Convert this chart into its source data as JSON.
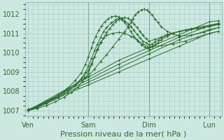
{
  "background_color": "#cce8e0",
  "plot_bg_color": "#cce8e0",
  "line_color": "#2d6e2d",
  "marker": "+",
  "markersize": 3,
  "linewidth": 0.7,
  "xlabel": "Pression niveau de la mer( hPa )",
  "xlabel_fontsize": 8,
  "yticks": [
    1007,
    1008,
    1009,
    1010,
    1011,
    1012
  ],
  "xtick_labels": [
    "Ven",
    "Sam",
    "Dim",
    "Lun"
  ],
  "xtick_positions": [
    0,
    1,
    2,
    3
  ],
  "ylim": [
    1006.7,
    1012.6
  ],
  "xlim": [
    -0.05,
    3.2
  ],
  "grid_color": "#a8cfc8",
  "vline_color": "#7ab0a8",
  "series": [
    {
      "x": [
        0.0,
        0.5,
        1.0,
        1.5,
        2.0,
        2.5,
        3.0,
        3.15
      ],
      "y": [
        1007.0,
        1007.67,
        1008.33,
        1009.0,
        1009.67,
        1010.33,
        1011.0,
        1011.1
      ]
    },
    {
      "x": [
        0.0,
        0.5,
        1.0,
        1.5,
        2.0,
        2.5,
        3.0,
        3.15
      ],
      "y": [
        1007.0,
        1007.73,
        1008.47,
        1009.2,
        1009.93,
        1010.67,
        1011.2,
        1011.3
      ]
    },
    {
      "x": [
        0.0,
        0.5,
        1.0,
        1.5,
        2.0,
        2.5,
        3.0,
        3.15
      ],
      "y": [
        1007.0,
        1007.8,
        1008.6,
        1009.4,
        1010.1,
        1010.8,
        1011.4,
        1011.5
      ]
    },
    {
      "x": [
        0.0,
        0.5,
        1.0,
        1.5,
        2.0,
        2.5,
        3.0,
        3.15
      ],
      "y": [
        1007.0,
        1007.87,
        1008.73,
        1009.6,
        1010.27,
        1010.93,
        1011.6,
        1011.65
      ]
    },
    {
      "x": [
        0.0,
        0.15,
        0.3,
        0.45,
        0.6,
        0.72,
        0.82,
        0.9,
        0.95,
        1.0,
        1.05,
        1.1,
        1.15,
        1.2,
        1.3,
        1.4,
        1.5,
        1.6,
        1.7,
        1.8,
        1.9,
        2.0,
        2.2,
        2.4,
        2.6,
        2.8,
        3.0,
        3.15
      ],
      "y": [
        1007.0,
        1007.1,
        1007.25,
        1007.45,
        1007.7,
        1007.95,
        1008.2,
        1008.5,
        1008.7,
        1008.95,
        1009.4,
        1009.8,
        1010.2,
        1010.55,
        1010.9,
        1011.0,
        1011.05,
        1011.0,
        1010.85,
        1010.65,
        1010.45,
        1010.3,
        1010.35,
        1010.45,
        1010.6,
        1010.8,
        1011.0,
        1011.1
      ]
    },
    {
      "x": [
        0.0,
        0.15,
        0.3,
        0.5,
        0.65,
        0.78,
        0.88,
        0.95,
        1.0,
        1.05,
        1.1,
        1.15,
        1.2,
        1.25,
        1.3,
        1.38,
        1.45,
        1.5,
        1.55,
        1.6,
        1.65,
        1.7,
        1.75,
        1.8,
        1.85,
        1.9,
        1.95,
        2.0,
        2.05,
        2.1,
        2.15,
        2.2,
        2.3,
        2.4,
        2.5,
        2.6,
        2.7,
        2.8,
        2.9,
        3.0,
        3.15
      ],
      "y": [
        1007.0,
        1007.15,
        1007.35,
        1007.65,
        1007.95,
        1008.3,
        1008.65,
        1009.0,
        1009.3,
        1009.7,
        1010.1,
        1010.45,
        1010.8,
        1011.1,
        1011.3,
        1011.55,
        1011.7,
        1011.8,
        1011.75,
        1011.65,
        1011.5,
        1011.35,
        1011.15,
        1010.95,
        1010.75,
        1010.6,
        1010.5,
        1010.4,
        1010.45,
        1010.55,
        1010.65,
        1010.75,
        1010.9,
        1011.0,
        1011.1,
        1011.15,
        1011.2,
        1011.25,
        1011.3,
        1011.35,
        1011.45
      ]
    },
    {
      "x": [
        0.0,
        0.15,
        0.3,
        0.5,
        0.65,
        0.78,
        0.88,
        0.95,
        1.0,
        1.05,
        1.08,
        1.12,
        1.17,
        1.22,
        1.27,
        1.32,
        1.38,
        1.45,
        1.5,
        1.55,
        1.6,
        1.65,
        1.7,
        1.75,
        1.82,
        1.88,
        1.93,
        1.97,
        2.0,
        2.05,
        2.1,
        2.15,
        2.2,
        2.3,
        2.4,
        2.5,
        2.6,
        2.7,
        2.8,
        2.9,
        3.0,
        3.15
      ],
      "y": [
        1007.05,
        1007.2,
        1007.45,
        1007.8,
        1008.15,
        1008.55,
        1008.95,
        1009.4,
        1009.8,
        1010.25,
        1010.55,
        1010.85,
        1011.15,
        1011.4,
        1011.6,
        1011.75,
        1011.85,
        1011.9,
        1011.85,
        1011.72,
        1011.55,
        1011.35,
        1011.1,
        1010.85,
        1010.6,
        1010.4,
        1010.3,
        1010.25,
        1010.2,
        1010.3,
        1010.4,
        1010.52,
        1010.65,
        1010.85,
        1011.0,
        1011.1,
        1011.18,
        1011.25,
        1011.3,
        1011.36,
        1011.42,
        1011.52
      ]
    },
    {
      "x": [
        0.0,
        0.2,
        0.4,
        0.6,
        0.8,
        1.0,
        1.1,
        1.2,
        1.3,
        1.4,
        1.5,
        1.6,
        1.65,
        1.7,
        1.73,
        1.77,
        1.82,
        1.87,
        1.92,
        1.97,
        2.0,
        2.05,
        2.1,
        2.15,
        2.2,
        2.3,
        2.5,
        2.7,
        2.9,
        3.0,
        3.15
      ],
      "y": [
        1007.05,
        1007.3,
        1007.6,
        1008.0,
        1008.4,
        1008.8,
        1009.15,
        1009.55,
        1009.9,
        1010.3,
        1010.7,
        1011.1,
        1011.3,
        1011.55,
        1011.75,
        1011.95,
        1012.1,
        1012.2,
        1012.25,
        1012.2,
        1012.1,
        1011.95,
        1011.75,
        1011.55,
        1011.35,
        1011.1,
        1010.85,
        1010.9,
        1011.05,
        1011.15,
        1011.3
      ]
    },
    {
      "x": [
        0.0,
        0.15,
        0.3,
        0.5,
        0.65,
        0.8,
        0.92,
        1.0,
        1.05,
        1.1,
        1.15,
        1.2,
        1.25,
        1.3,
        1.35,
        1.4,
        1.45,
        1.5,
        1.55,
        1.6,
        1.65,
        1.7,
        1.75,
        1.8,
        1.85,
        1.9,
        1.95,
        2.0,
        2.1,
        2.2,
        2.3,
        2.5,
        2.7,
        2.9,
        3.0,
        3.15
      ],
      "y": [
        1007.0,
        1007.18,
        1007.4,
        1007.72,
        1008.05,
        1008.4,
        1008.75,
        1009.1,
        1009.45,
        1009.8,
        1010.15,
        1010.5,
        1010.78,
        1011.05,
        1011.25,
        1011.45,
        1011.6,
        1011.72,
        1011.8,
        1011.82,
        1011.78,
        1011.68,
        1011.5,
        1011.3,
        1011.1,
        1010.9,
        1010.72,
        1010.6,
        1010.68,
        1010.8,
        1010.95,
        1011.1,
        1011.2,
        1011.3,
        1011.38,
        1011.48
      ]
    }
  ]
}
